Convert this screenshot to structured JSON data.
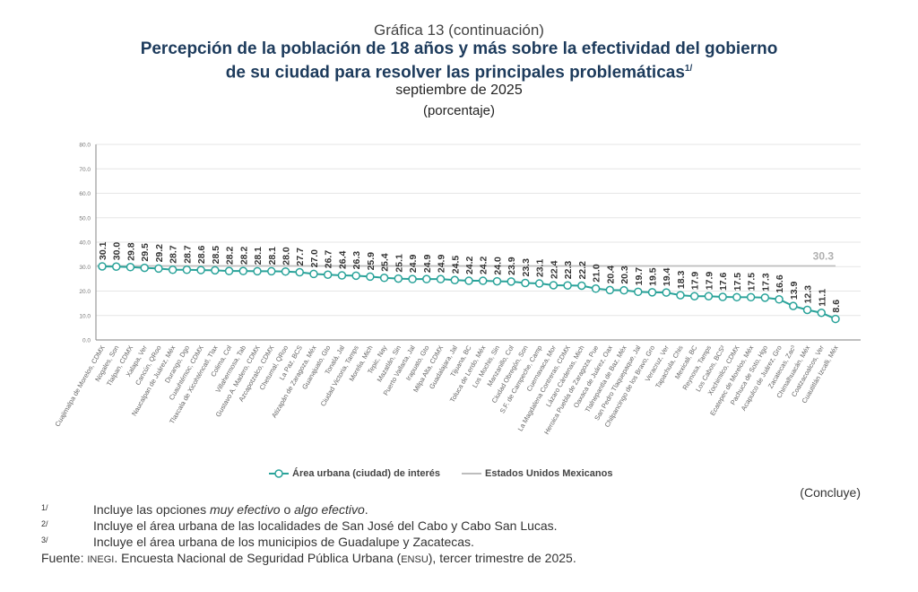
{
  "header": {
    "chart_number": "Gráfica 13 (continuación)",
    "title_line1": "Percepción de la población de 18 años y más sobre la efectividad del gobierno",
    "title_line2": "de su ciudad para resolver las principales problemáticas",
    "title_note": "1/",
    "date": "septiembre de 2025",
    "unit": "(porcentaje)"
  },
  "chart_data": {
    "type": "line",
    "title": "Percepción de la población de 18 años y más sobre la efectividad del gobierno de su ciudad para resolver las principales problemáticas",
    "xlabel": "",
    "ylabel": "",
    "ylim": [
      0,
      80
    ],
    "yticks": [
      "0.0",
      "10.0",
      "20.0",
      "30.0",
      "40.0",
      "50.0",
      "60.0",
      "70.0",
      "80.0"
    ],
    "grid": true,
    "categories": [
      "Cuajimalpa de Morelos, CDMX",
      "Nogales, Son",
      "Tlalpan, CDMX",
      "Xalapa, Ver",
      "Cancún, QRoo",
      "Naucalpan de Juárez, Méx",
      "Durango, Dgo",
      "Cuauhtémoc, CDMX",
      "Tlaxcala de Xicohténcatl, Tlax",
      "Colima, Col",
      "Villahermosa, Tab",
      "Gustavo A. Madero, CDMX",
      "Azcapotzalco, CDMX",
      "Chetumal, QRoo",
      "La Paz, BCS",
      "Atizapán de Zaragoza, Méx",
      "Guanajuato, Gto",
      "Tonalá, Jal",
      "Ciudad Victoria, Tamps",
      "Morelia, Mich",
      "Tepic, Nay",
      "Mazatlán, Sin",
      "Puerto Vallarta, Jal",
      "Irapuato, Gto",
      "Milpa Alta, CDMX",
      "Guadalajara, Jal",
      "Tijuana, BC",
      "Toluca de Lerdo, Méx",
      "Los Mochis, Sin",
      "Manzanillo, Col",
      "Ciudad Obregón, Son",
      "S.F. de Campeche, Camp",
      "Cuernavaca, Mor",
      "La Magdalena Contreras, CDMX",
      "Lázaro Cárdenas, Mich",
      "Heroica Puebla de Zaragoza, Pue",
      "Oaxaca de Juárez, Oax",
      "Tlalnepantla de Baz, Méx",
      "San Pedro Tlaquepaque, Jal",
      "Chilpancingo de los Bravo, Gro",
      "Veracruz, Ver",
      "Tapachula, Chis",
      "Mexicali, BC",
      "Reynosa, Tamps",
      "Los Cabos, BCS²",
      "Xochimilco, CDMX",
      "Ecatepec de Morelos, Méx",
      "Pachuca de Soto, Hgo",
      "Acapulco de Juárez, Gro",
      "Zacatecas, Zac³",
      "Chimalhuacán, Méx",
      "Coatzacoalcos, Ver",
      "Cuautitlán Izcalli, Méx"
    ],
    "series": [
      {
        "name": "Área urbana (ciudad) de interés",
        "color": "#2aa39a",
        "values": [
          30.1,
          30.0,
          29.8,
          29.5,
          29.2,
          28.7,
          28.7,
          28.6,
          28.5,
          28.2,
          28.2,
          28.1,
          28.1,
          28.0,
          27.7,
          27.0,
          26.7,
          26.4,
          26.3,
          25.9,
          25.4,
          25.1,
          24.9,
          24.9,
          24.9,
          24.5,
          24.2,
          24.2,
          24.0,
          23.9,
          23.3,
          23.1,
          22.4,
          22.3,
          22.2,
          21.0,
          20.4,
          20.3,
          19.7,
          19.5,
          19.4,
          18.3,
          17.9,
          17.9,
          17.6,
          17.5,
          17.5,
          17.3,
          16.6,
          13.9,
          12.3,
          11.1,
          8.6
        ]
      },
      {
        "name": "Estados Unidos Mexicanos",
        "color": "#bdbdbd",
        "value": 30.3,
        "value_label": "30.3"
      }
    ],
    "legend_position": "bottom"
  },
  "legend": {
    "city_label": "Área urbana (ciudad) de interés",
    "national_label": "Estados Unidos Mexicanos"
  },
  "concluye": "(Concluye)",
  "notes": [
    {
      "marker": "1/",
      "pre": "Incluye las opciones ",
      "em1": "muy efectivo",
      "mid": " o ",
      "em2": "algo efectivo",
      "post": "."
    },
    {
      "marker": "2/",
      "text": "Incluye el área urbana de las localidades de San José del Cabo y Cabo San Lucas."
    },
    {
      "marker": "3/",
      "text": "Incluye el área urbana de los municipios de Guadalupe y Zacatecas."
    }
  ],
  "source": {
    "label": "Fuente: ",
    "org": "INEGI",
    "text1": ". Encuesta Nacional de Seguridad Pública Urbana (",
    "acronym": "ENSU",
    "text2": "), tercer trimestre de 2025."
  }
}
